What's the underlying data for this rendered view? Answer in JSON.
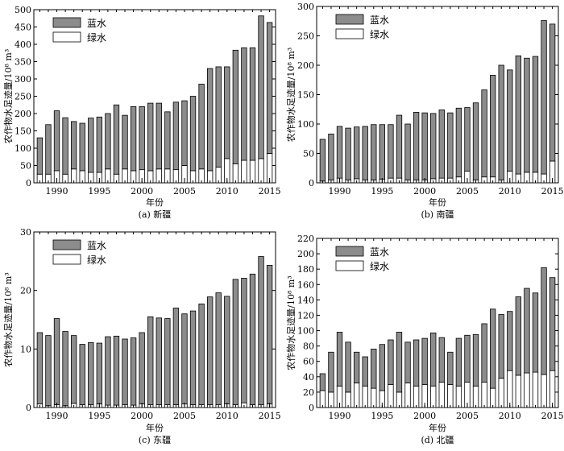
{
  "colors": {
    "blue_water": "#8c8c8c",
    "green_water": "#ffffff",
    "edge": "#000000"
  },
  "chart_data": [
    {
      "type": "bar",
      "stacked": true,
      "caption": "(a) 新疆",
      "xlabel": "年份",
      "ylabel": "农作物水足迹量/10⁸ m³",
      "ylim": [
        0,
        500
      ],
      "yticks": [
        0,
        50,
        100,
        150,
        200,
        250,
        300,
        350,
        400,
        450,
        500
      ],
      "xtick_labels": [
        "1990",
        "1995",
        "2000",
        "2005",
        "2010",
        "2015"
      ],
      "legend_position": "top-left",
      "categories": [
        1988,
        1989,
        1990,
        1991,
        1992,
        1993,
        1994,
        1995,
        1996,
        1997,
        1998,
        1999,
        2000,
        2001,
        2002,
        2003,
        2004,
        2005,
        2006,
        2007,
        2008,
        2009,
        2010,
        2011,
        2012,
        2013,
        2014,
        2015
      ],
      "series": [
        {
          "name": "绿水",
          "values": [
            25,
            25,
            35,
            25,
            40,
            35,
            30,
            30,
            40,
            25,
            40,
            35,
            38,
            35,
            40,
            40,
            38,
            50,
            35,
            40,
            35,
            45,
            70,
            55,
            65,
            65,
            70,
            85
          ]
        },
        {
          "name": "蓝水",
          "values": [
            105,
            143,
            173,
            163,
            137,
            137,
            157,
            160,
            160,
            200,
            155,
            185,
            182,
            195,
            190,
            165,
            195,
            187,
            215,
            245,
            295,
            290,
            265,
            328,
            325,
            325,
            412,
            378
          ]
        }
      ]
    },
    {
      "type": "bar",
      "stacked": true,
      "caption": "(b) 南疆",
      "xlabel": "年份",
      "ylabel": "农作物水足迹量/10⁸ m³",
      "ylim": [
        0,
        300
      ],
      "yticks": [
        0,
        50,
        100,
        150,
        200,
        250,
        300
      ],
      "xtick_labels": [
        "1990",
        "1995",
        "2000",
        "2005",
        "2010",
        "2015"
      ],
      "legend_position": "top-left",
      "categories": [
        1988,
        1989,
        1990,
        1991,
        1992,
        1993,
        1994,
        1995,
        1996,
        1997,
        1998,
        1999,
        2000,
        2001,
        2002,
        2003,
        2004,
        2005,
        2006,
        2007,
        2008,
        2009,
        2010,
        2011,
        2012,
        2013,
        2014,
        2015
      ],
      "series": [
        {
          "name": "绿水",
          "values": [
            3,
            5,
            8,
            5,
            7,
            5,
            5,
            6,
            8,
            8,
            5,
            5,
            5,
            7,
            8,
            8,
            10,
            20,
            5,
            10,
            10,
            5,
            20,
            15,
            18,
            18,
            15,
            37
          ]
        },
        {
          "name": "蓝水",
          "values": [
            71,
            78,
            88,
            88,
            88,
            91,
            94,
            93,
            91,
            107,
            95,
            115,
            114,
            111,
            116,
            111,
            117,
            108,
            131,
            148,
            173,
            195,
            172,
            201,
            194,
            197,
            261,
            233
          ]
        }
      ]
    },
    {
      "type": "bar",
      "stacked": true,
      "caption": "(c) 东疆",
      "xlabel": "年份",
      "ylabel": "农作物水足迹量/10⁸ m³",
      "ylim": [
        0,
        30
      ],
      "yticks": [
        0,
        10,
        20,
        30
      ],
      "xtick_labels": [
        "1990",
        "1995",
        "2000",
        "2005",
        "2010",
        "2015"
      ],
      "legend_position": "top-left",
      "categories": [
        1988,
        1989,
        1990,
        1991,
        1992,
        1993,
        1994,
        1995,
        1996,
        1997,
        1998,
        1999,
        2000,
        2001,
        2002,
        2003,
        2004,
        2005,
        2006,
        2007,
        2008,
        2009,
        2010,
        2011,
        2012,
        2013,
        2014,
        2015
      ],
      "series": [
        {
          "name": "绿水",
          "values": [
            0.6,
            0.3,
            0.5,
            0.3,
            0.7,
            0.5,
            0.5,
            0.6,
            0.4,
            0.4,
            0.5,
            0.4,
            0.6,
            0.5,
            0.5,
            0.5,
            0.5,
            0.6,
            0.5,
            0.5,
            0.5,
            0.5,
            0.6,
            0.5,
            0.8,
            0.5,
            0.5,
            0.6
          ]
        },
        {
          "name": "蓝水",
          "values": [
            12.2,
            12.0,
            14.7,
            12.7,
            11.6,
            10.3,
            10.6,
            10.4,
            11.7,
            11.8,
            11.2,
            11.5,
            12.2,
            15.0,
            14.8,
            14.7,
            16.5,
            15.4,
            16.0,
            17.2,
            18.4,
            19.1,
            18.4,
            21.4,
            21.3,
            22.3,
            25.3,
            23.7
          ]
        }
      ]
    },
    {
      "type": "bar",
      "stacked": true,
      "caption": "(d) 北疆",
      "xlabel": "年份",
      "ylabel": "农作物水足迹量/10⁸ m³",
      "ylim": [
        0,
        220
      ],
      "yticks": [
        0,
        20,
        40,
        60,
        80,
        100,
        120,
        140,
        160,
        180,
        200,
        220
      ],
      "xtick_labels": [
        "1990",
        "1995",
        "2000",
        "2005",
        "2010",
        "2015"
      ],
      "legend_position": "top-left",
      "categories": [
        1988,
        1989,
        1990,
        1991,
        1992,
        1993,
        1994,
        1995,
        1996,
        1997,
        1998,
        1999,
        2000,
        2001,
        2002,
        2003,
        2004,
        2005,
        2006,
        2007,
        2008,
        2009,
        2010,
        2011,
        2012,
        2013,
        2014,
        2015
      ],
      "series": [
        {
          "name": "绿水",
          "values": [
            22,
            20,
            28,
            20,
            32,
            28,
            25,
            22,
            30,
            20,
            32,
            28,
            30,
            28,
            33,
            30,
            28,
            33,
            28,
            33,
            25,
            38,
            48,
            42,
            45,
            46,
            43,
            48
          ]
        },
        {
          "name": "蓝水",
          "values": [
            22,
            52,
            70,
            65,
            40,
            38,
            51,
            60,
            58,
            78,
            53,
            60,
            60,
            69,
            58,
            42,
            62,
            61,
            67,
            76,
            103,
            83,
            77,
            102,
            110,
            103,
            139,
            121
          ]
        }
      ]
    }
  ]
}
